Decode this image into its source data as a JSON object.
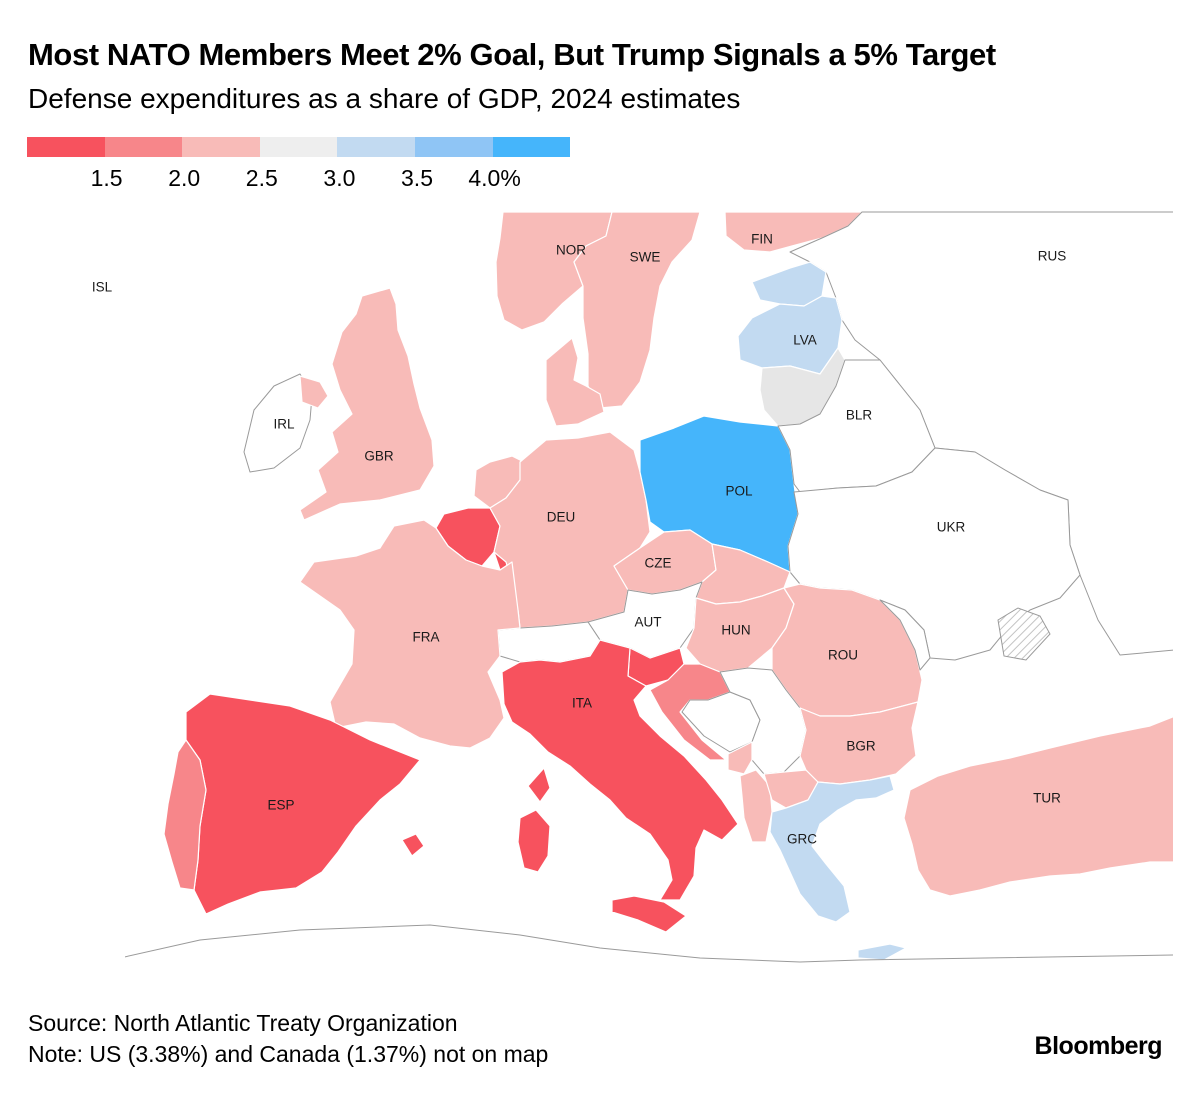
{
  "title": "Most NATO Members Meet 2% Goal, But Trump Signals a 5% Target",
  "subtitle": "Defense expenditures as a share of GDP, 2024 estimates",
  "legend": {
    "bins": [
      {
        "max": 1.5,
        "color": "#f7525e"
      },
      {
        "max": 2.0,
        "color": "#f7868a"
      },
      {
        "max": 2.5,
        "color": "#f8bbb8"
      },
      {
        "max": 3.0,
        "color": "#eeeeee"
      },
      {
        "max": 3.5,
        "color": "#c2daf1"
      },
      {
        "max": 4.0,
        "color": "#8fc5f5"
      },
      {
        "max": 99,
        "color": "#45b5fb"
      }
    ],
    "tick_labels": [
      "1.5",
      "2.0",
      "2.5",
      "3.0",
      "3.5",
      "4.0%"
    ]
  },
  "map": {
    "countries": [
      {
        "code": "ISL",
        "label": "ISL",
        "nato": true,
        "fill": "#ffffff"
      },
      {
        "code": "NOR",
        "label": "NOR",
        "nato": true,
        "fill": "#f8bbb8"
      },
      {
        "code": "SWE",
        "label": "SWE",
        "nato": true,
        "fill": "#f8bbb8"
      },
      {
        "code": "FIN",
        "label": "FIN",
        "nato": true,
        "fill": "#f8bbb8"
      },
      {
        "code": "RUS",
        "label": "RUS",
        "nato": false
      },
      {
        "code": "EST",
        "label": "",
        "nato": true,
        "fill": "#c2daf1"
      },
      {
        "code": "LVA",
        "label": "LVA",
        "nato": true,
        "fill": "#c2daf1"
      },
      {
        "code": "LTU",
        "label": "",
        "nato": true,
        "fill": "#e6e6e6"
      },
      {
        "code": "IRL",
        "label": "IRL",
        "nato": false
      },
      {
        "code": "GBR",
        "label": "GBR",
        "nato": true,
        "fill": "#f8bbb8"
      },
      {
        "code": "DNK",
        "label": "",
        "nato": true,
        "fill": "#f8bbb8"
      },
      {
        "code": "NLD",
        "label": "",
        "nato": true,
        "fill": "#f8bbb8"
      },
      {
        "code": "BEL",
        "label": "",
        "nato": true,
        "fill": "#f7525e"
      },
      {
        "code": "LUX",
        "label": "",
        "nato": true,
        "fill": "#f7525e"
      },
      {
        "code": "DEU",
        "label": "DEU",
        "nato": true,
        "fill": "#f8bbb8"
      },
      {
        "code": "POL",
        "label": "POL",
        "nato": true,
        "fill": "#45b5fb"
      },
      {
        "code": "BLR",
        "label": "BLR",
        "nato": false
      },
      {
        "code": "UKR",
        "label": "UKR",
        "nato": false
      },
      {
        "code": "CZE",
        "label": "CZE",
        "nato": true,
        "fill": "#f8bbb8"
      },
      {
        "code": "SVK",
        "label": "",
        "nato": true,
        "fill": "#f8bbb8"
      },
      {
        "code": "AUT",
        "label": "AUT",
        "nato": false
      },
      {
        "code": "CHE",
        "label": "",
        "nato": false
      },
      {
        "code": "HUN",
        "label": "HUN",
        "nato": true,
        "fill": "#f8bbb8"
      },
      {
        "code": "FRA",
        "label": "FRA",
        "nato": true,
        "fill": "#f8bbb8"
      },
      {
        "code": "ROU",
        "label": "ROU",
        "nato": true,
        "fill": "#f8bbb8"
      },
      {
        "code": "MDA",
        "label": "",
        "nato": false
      },
      {
        "code": "SVN",
        "label": "",
        "nato": true,
        "fill": "#f7525e"
      },
      {
        "code": "HRV",
        "label": "",
        "nato": true,
        "fill": "#f7868a"
      },
      {
        "code": "BIH",
        "label": "",
        "nato": false
      },
      {
        "code": "SRB",
        "label": "",
        "nato": false
      },
      {
        "code": "MNE",
        "label": "",
        "nato": true,
        "fill": "#f8bbb8"
      },
      {
        "code": "ALB",
        "label": "",
        "nato": true,
        "fill": "#f8bbb8"
      },
      {
        "code": "MKD",
        "label": "",
        "nato": true,
        "fill": "#f8bbb8"
      },
      {
        "code": "BGR",
        "label": "BGR",
        "nato": true,
        "fill": "#f8bbb8"
      },
      {
        "code": "ITA",
        "label": "ITA",
        "nato": true,
        "fill": "#f7525e"
      },
      {
        "code": "ESP",
        "label": "ESP",
        "nato": true,
        "fill": "#f7525e"
      },
      {
        "code": "PRT",
        "label": "",
        "nato": true,
        "fill": "#f7868a"
      },
      {
        "code": "GRC",
        "label": "GRC",
        "nato": true,
        "fill": "#c2daf1"
      },
      {
        "code": "TUR",
        "label": "TUR",
        "nato": true,
        "fill": "#f8bbb8"
      },
      {
        "code": "AFR",
        "label": "",
        "nato": false
      }
    ]
  },
  "source": "Source: North Atlantic Treaty Organization",
  "note": "Note: US (3.38%) and Canada (1.37%) not on map",
  "brand": "Bloomberg"
}
